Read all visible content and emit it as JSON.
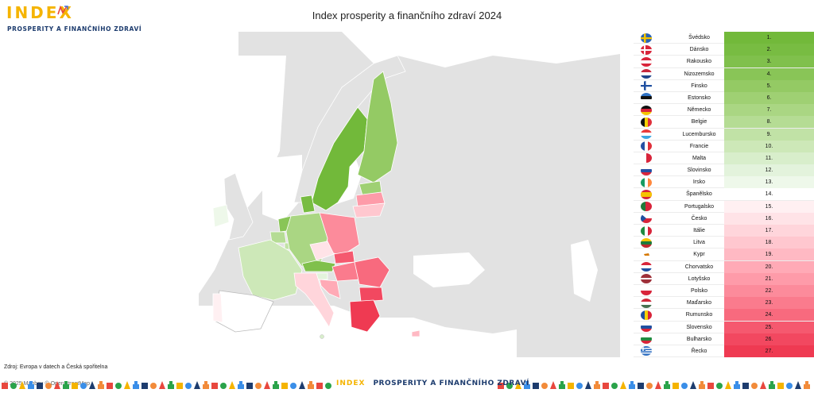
{
  "logo": {
    "word": "INDEX",
    "subtitle": "PROSPERITY A FINANČNÍHO ZDRAVÍ"
  },
  "title": "Index prosperity a finančního zdraví 2024",
  "map": {
    "attribution": "© 2025 Mapbox © OpenStreetMap",
    "land_color": "#e2e2e2",
    "border_color": "#ffffff"
  },
  "source": "Zdroj: Evropa v datech a Česká spořitelna",
  "footer": {
    "brand_word": "INDEX",
    "brand_text": "PROSPERITY A FINANČNÍHO ZDRAVÍ"
  },
  "ranking": [
    {
      "country": "Švédsko",
      "rank": "1.",
      "color": "#72b93a",
      "flag": "se"
    },
    {
      "country": "Dánsko",
      "rank": "2.",
      "color": "#78bc42",
      "flag": "dk"
    },
    {
      "country": "Rakousko",
      "rank": "3.",
      "color": "#80c04c",
      "flag": "at"
    },
    {
      "country": "Nizozemsko",
      "rank": "4.",
      "color": "#89c557",
      "flag": "nl"
    },
    {
      "country": "Finsko",
      "rank": "5.",
      "color": "#94ca64",
      "flag": "fi"
    },
    {
      "country": "Estonsko",
      "rank": "6.",
      "color": "#9fd073",
      "flag": "ee"
    },
    {
      "country": "Německo",
      "rank": "7.",
      "color": "#aad683",
      "flag": "de"
    },
    {
      "country": "Belgie",
      "rank": "8.",
      "color": "#b5dc94",
      "flag": "be"
    },
    {
      "country": "Lucembursko",
      "rank": "9.",
      "color": "#c1e2a6",
      "flag": "lu"
    },
    {
      "country": "Francie",
      "rank": "10.",
      "color": "#cde8b8",
      "flag": "fr"
    },
    {
      "country": "Malta",
      "rank": "11.",
      "color": "#d8eecb",
      "flag": "mt"
    },
    {
      "country": "Slovinsko",
      "rank": "12.",
      "color": "#e3f3dc",
      "flag": "si"
    },
    {
      "country": "Irsko",
      "rank": "13.",
      "color": "#eef8ea",
      "flag": "ie"
    },
    {
      "country": "Španělsko",
      "rank": "14.",
      "color": "#ffffff",
      "flag": "es"
    },
    {
      "country": "Portugalsko",
      "rank": "15.",
      "color": "#fff0f2",
      "flag": "pt"
    },
    {
      "country": "Česko",
      "rank": "16.",
      "color": "#ffe3e7",
      "flag": "cz"
    },
    {
      "country": "Itálie",
      "rank": "17.",
      "color": "#ffd5db",
      "flag": "it"
    },
    {
      "country": "Litva",
      "rank": "18.",
      "color": "#ffc7cf",
      "flag": "lt"
    },
    {
      "country": "Kypr",
      "rank": "19.",
      "color": "#ffb9c3",
      "flag": "cy"
    },
    {
      "country": "Chorvatsko",
      "rank": "20.",
      "color": "#ffaab6",
      "flag": "hr"
    },
    {
      "country": "Lotyšsko",
      "rank": "21.",
      "color": "#fe9ba9",
      "flag": "lv"
    },
    {
      "country": "Polsko",
      "rank": "22.",
      "color": "#fc8b9b",
      "flag": "pl"
    },
    {
      "country": "Maďarsko",
      "rank": "23.",
      "color": "#fa7b8d",
      "flag": "hu"
    },
    {
      "country": "Rumunsko",
      "rank": "24.",
      "color": "#f86a7e",
      "flag": "ro"
    },
    {
      "country": "Slovensko",
      "rank": "25.",
      "color": "#f5596f",
      "flag": "sk"
    },
    {
      "country": "Bulharsko",
      "rank": "26.",
      "color": "#f24860",
      "flag": "bg"
    },
    {
      "country": "Řecko",
      "rank": "27.",
      "color": "#ef3a52",
      "flag": "gr"
    }
  ]
}
